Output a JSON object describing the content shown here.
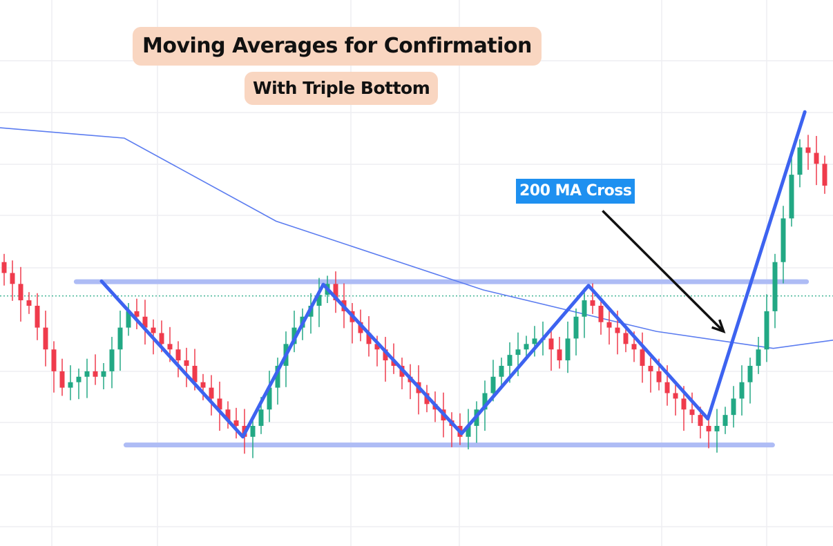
{
  "chart_data": {
    "type": "candlestick",
    "title": "Moving Averages for Confirmation",
    "subtitle": "With Triple Bottom",
    "ylim": [
      0,
      100
    ],
    "grid": true,
    "colors": {
      "up": "#22a884",
      "down": "#ef3b4c",
      "ma": "#5b7cf0",
      "pattern": "#3d63f0",
      "level": "#aebcf5",
      "dotted": "#22a884",
      "annotation_bg": "#1e90f0",
      "title_bg": "#f9d6c1"
    },
    "close": [
      50,
      48,
      45,
      44,
      40,
      36,
      32,
      29,
      30,
      31,
      32,
      31,
      32,
      36,
      40,
      43,
      42,
      40,
      39,
      37,
      36,
      34,
      33,
      30,
      29,
      27,
      25,
      23,
      22,
      20,
      22,
      25,
      29,
      33,
      37,
      40,
      42,
      44,
      46,
      48,
      45,
      43,
      41,
      39,
      37,
      36,
      34,
      33,
      31,
      30,
      28,
      26,
      25,
      23,
      22,
      20,
      22,
      25,
      28,
      31,
      33,
      35,
      36,
      37,
      38,
      38,
      36,
      34,
      38,
      42,
      45,
      44,
      41,
      40,
      39,
      37,
      36,
      33,
      32,
      30,
      28,
      27,
      25,
      24,
      22,
      21,
      22,
      24,
      27,
      30,
      33,
      36,
      43,
      52,
      60,
      68,
      73,
      72,
      70,
      66
    ],
    "moving_average": {
      "name": "200 MA",
      "points": [
        [
          -0.5,
          76.6
        ],
        [
          14.5,
          74.7
        ],
        [
          32.8,
          59.5
        ],
        [
          57.8,
          46.9
        ],
        [
          78.7,
          39.3
        ],
        [
          92.8,
          36.2
        ],
        [
          100,
          37.7
        ]
      ]
    },
    "resistance": {
      "from": 8.7,
      "to": 96.8,
      "value": 48.4
    },
    "support": {
      "from": 14.7,
      "to": 92.7,
      "value": 18.5
    },
    "dotted_level": 45.8,
    "zigzag": [
      [
        11.75,
        48.5
      ],
      [
        28.8,
        20
      ],
      [
        38.5,
        47.9
      ],
      [
        55.2,
        20.6
      ],
      [
        70.5,
        47.7
      ],
      [
        84.9,
        23.3
      ],
      [
        96.6,
        79.5
      ]
    ],
    "annotation": {
      "label": "200 MA Cross",
      "arrow_from": [
        72.2,
        61.4
      ],
      "arrow_to": [
        86.8,
        39.3
      ]
    }
  }
}
